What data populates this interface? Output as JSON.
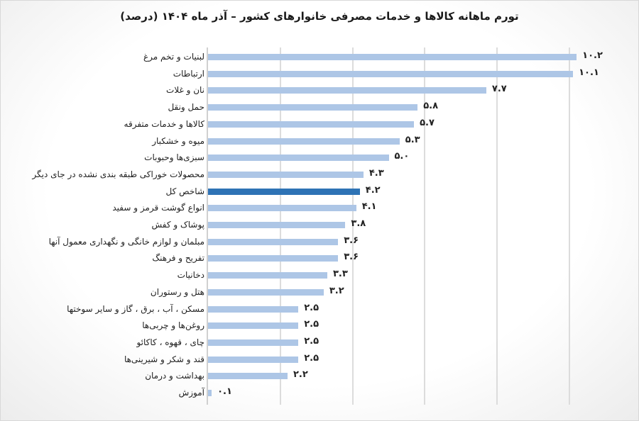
{
  "chart_data": {
    "type": "bar",
    "orientation": "horizontal",
    "title": "تورم ماهانه کالاها و خدمات مصرفی خانوارهای کشور – آذر ماه ۱۴۰۴ (درصد)",
    "xlabel": "",
    "ylabel": "",
    "xlim": [
      0,
      10
    ],
    "grid": true,
    "gridlines_at": [
      0,
      2,
      4,
      6,
      8,
      10
    ],
    "legend": null,
    "categories": [
      "لبنیات و تخم مرغ",
      "ارتباطات",
      "نان و غلات",
      "حمل ونقل",
      "کالاها و خدمات متفرقه",
      "میوه و خشکبار",
      "سبزی‌ها وحبوبات",
      "محصولات خوراکی طبقه بندی نشده در جای دیگر",
      "شاخص کل",
      "انواع گوشت قرمز و سفید",
      "پوشاک و کفش",
      "مبلمان و لوازم خانگی و نگهداری معمول آنها",
      "تفریح و فرهنگ",
      "دخانیات",
      "هتل و رستوران",
      "مسکن ، آب ، برق ، گاز و سایر سوختها",
      "روغن‌ها و چربی‌ها",
      "چای ، قهوه ، کاکائو",
      "قند و شکر و شیرینی‌ها",
      "بهداشت و درمان",
      "آموزش"
    ],
    "values": [
      10.2,
      10.1,
      7.7,
      5.8,
      5.7,
      5.3,
      5.0,
      4.3,
      4.2,
      4.1,
      3.8,
      3.6,
      3.6,
      3.3,
      3.2,
      2.5,
      2.5,
      2.5,
      2.5,
      2.2,
      0.1
    ],
    "value_labels": [
      "۱۰.۲",
      "۱۰.۱",
      "۷.۷",
      "۵.۸",
      "۵.۷",
      "۵.۳",
      "۵.۰",
      "۴.۳",
      "۴.۲",
      "۴.۱",
      "۳.۸",
      "۳.۶",
      "۳.۶",
      "۳.۳",
      "۳.۲",
      "۲.۵",
      "۲.۵",
      "۲.۵",
      "۲.۵",
      "۲.۲",
      "۰.۱"
    ],
    "highlight_index": 8,
    "colors": {
      "bar": "#adc6e6",
      "highlight": "#2e73b5",
      "grid": "#dcdcdc"
    }
  }
}
